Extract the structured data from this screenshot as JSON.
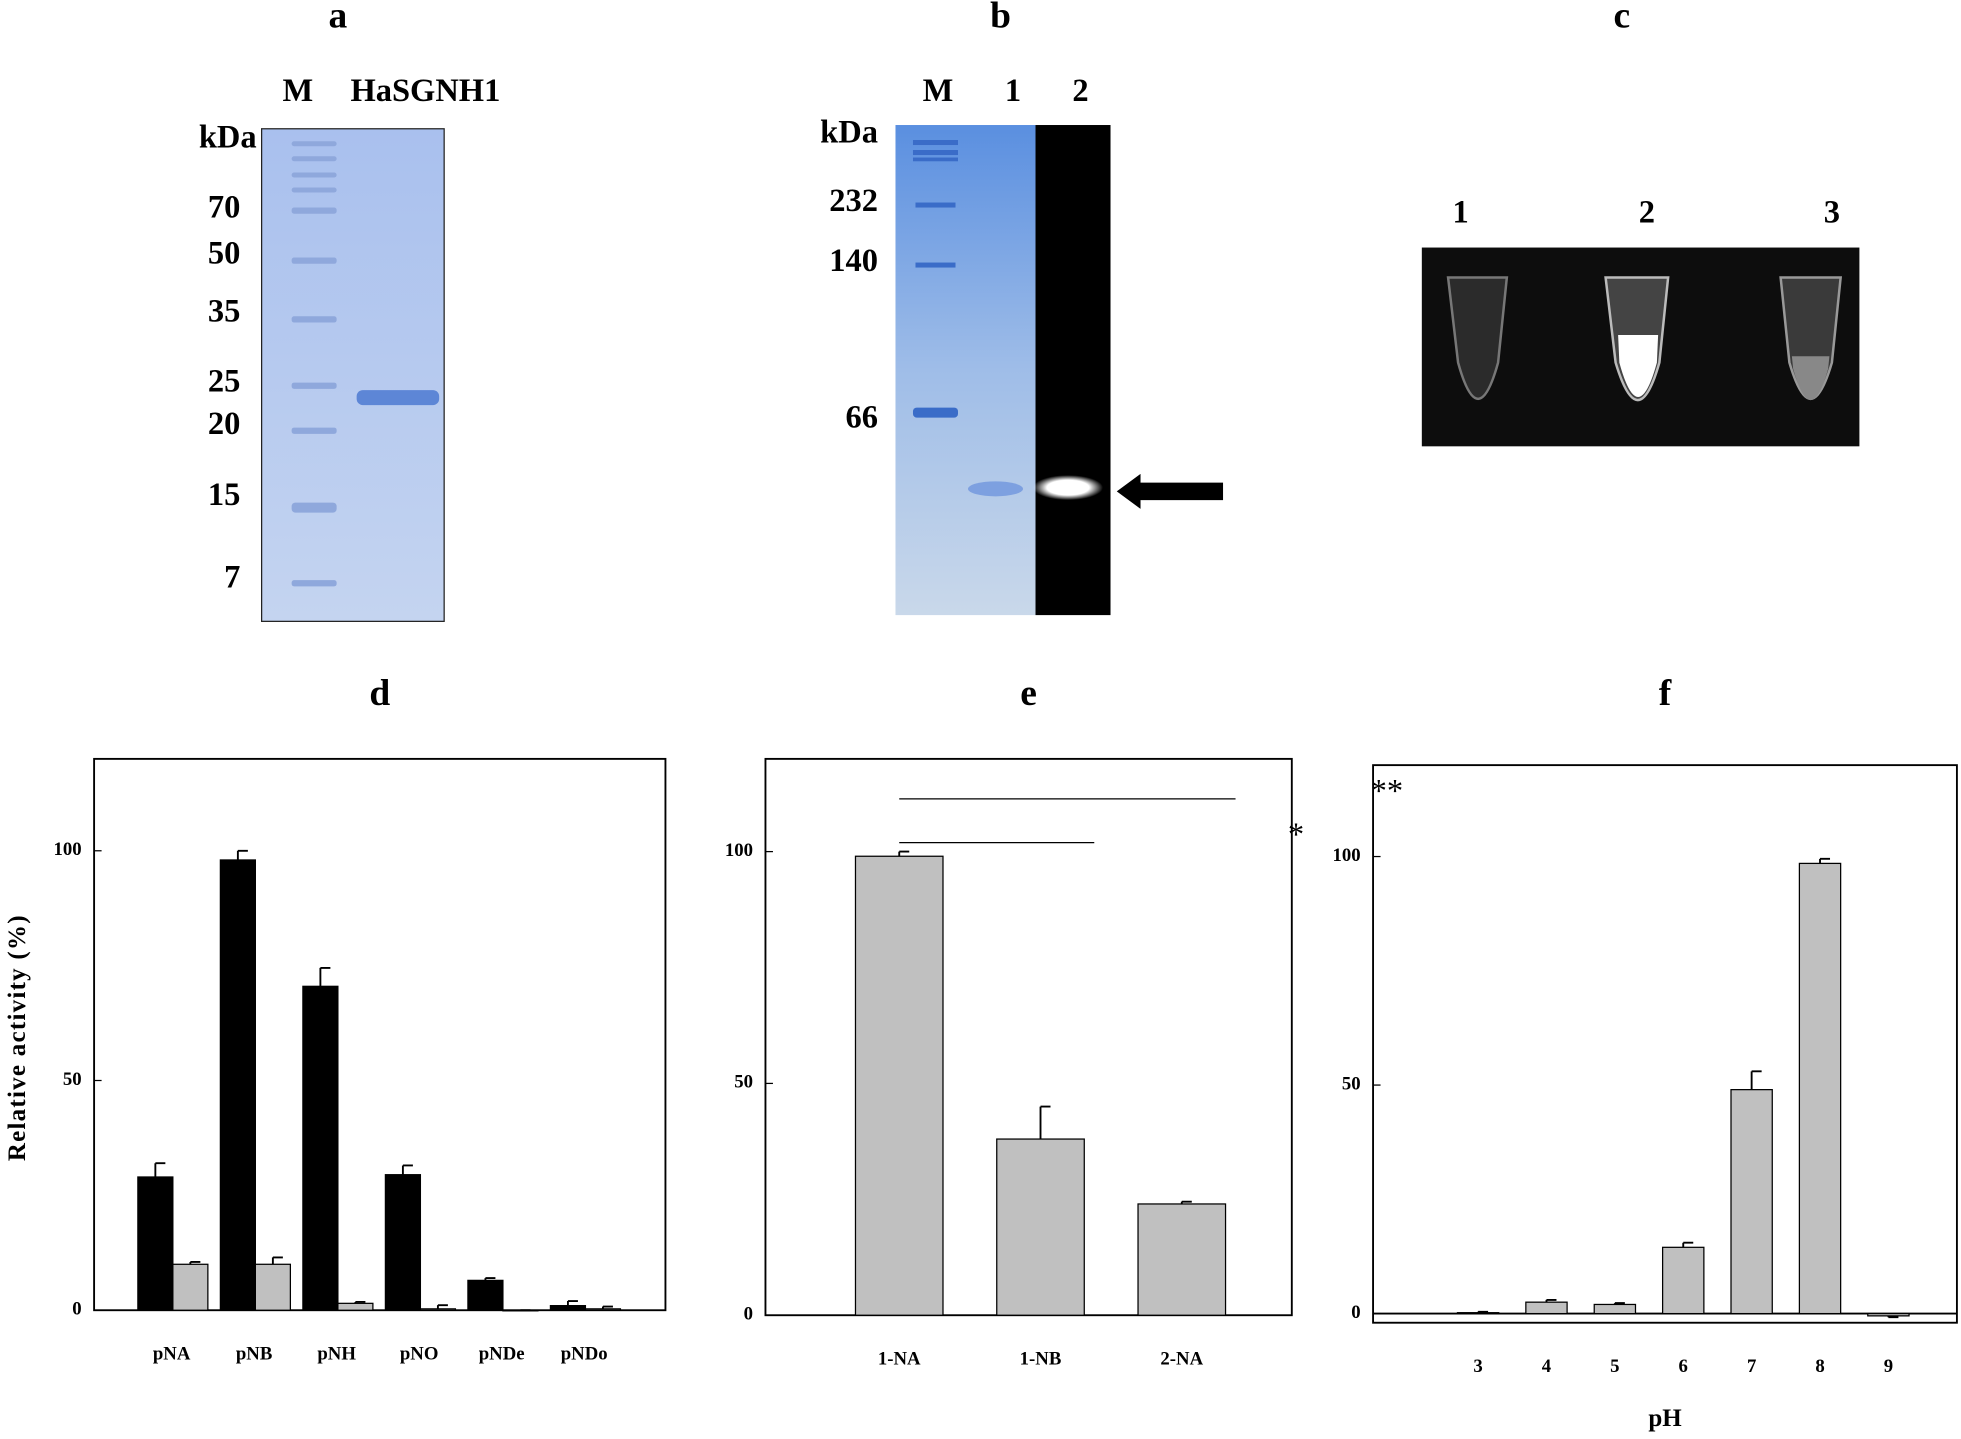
{
  "gels": {
    "a": {
      "panel": "a",
      "lanes": [
        "M",
        "HaSGNH1"
      ],
      "unit": "kDa",
      "markers": [
        "70",
        "50",
        "35",
        "25",
        "20",
        "15",
        "7"
      ]
    },
    "b": {
      "panel": "b",
      "lanes": [
        "M",
        "1",
        "2"
      ],
      "unit": "kDa",
      "markers": [
        "232",
        "140",
        "66"
      ]
    },
    "c": {
      "panel": "c",
      "lanes": [
        "1",
        "2",
        "3"
      ]
    }
  },
  "chart_data": [
    {
      "type": "bar",
      "panel": "d",
      "ylabel": "Relative activity (%)",
      "categories": [
        "pNA",
        "pNB",
        "pNH",
        "pNO",
        "pNDe",
        "pNDo"
      ],
      "series": [
        {
          "color": "#000000",
          "values": [
            29,
            98,
            70.5,
            29.5,
            6.5,
            1
          ],
          "errors": [
            3,
            2,
            4,
            2,
            0.5,
            1
          ]
        },
        {
          "color": "#c0c0c0",
          "values": [
            10,
            10,
            1.5,
            0.3,
            0,
            0.3
          ],
          "errors": [
            0.5,
            1.5,
            0.3,
            0.8,
            0,
            0.5
          ]
        }
      ],
      "ylim": [
        0,
        120
      ],
      "yticks": [
        0,
        50,
        100
      ]
    },
    {
      "type": "bar",
      "panel": "e",
      "categories": [
        "1-NA",
        "1-NB",
        "2-NA"
      ],
      "values": [
        99,
        38,
        24
      ],
      "errors": [
        1,
        7,
        0.5
      ],
      "color": "#c0c0c0",
      "annotations": [
        "**",
        "*"
      ],
      "ylim": [
        0,
        120
      ],
      "yticks": [
        0,
        50,
        100
      ]
    },
    {
      "type": "bar",
      "panel": "f",
      "xlabel": "pH",
      "categories": [
        "3",
        "4",
        "5",
        "6",
        "7",
        "8",
        "9"
      ],
      "values": [
        0.2,
        2.5,
        2,
        14.5,
        49,
        98.5,
        -0.5
      ],
      "errors": [
        0.2,
        0.5,
        0.3,
        1,
        4,
        1,
        0.3
      ],
      "color": "#c0c0c0",
      "ylim": [
        -2,
        120
      ],
      "yticks": [
        0,
        50,
        100
      ]
    }
  ]
}
